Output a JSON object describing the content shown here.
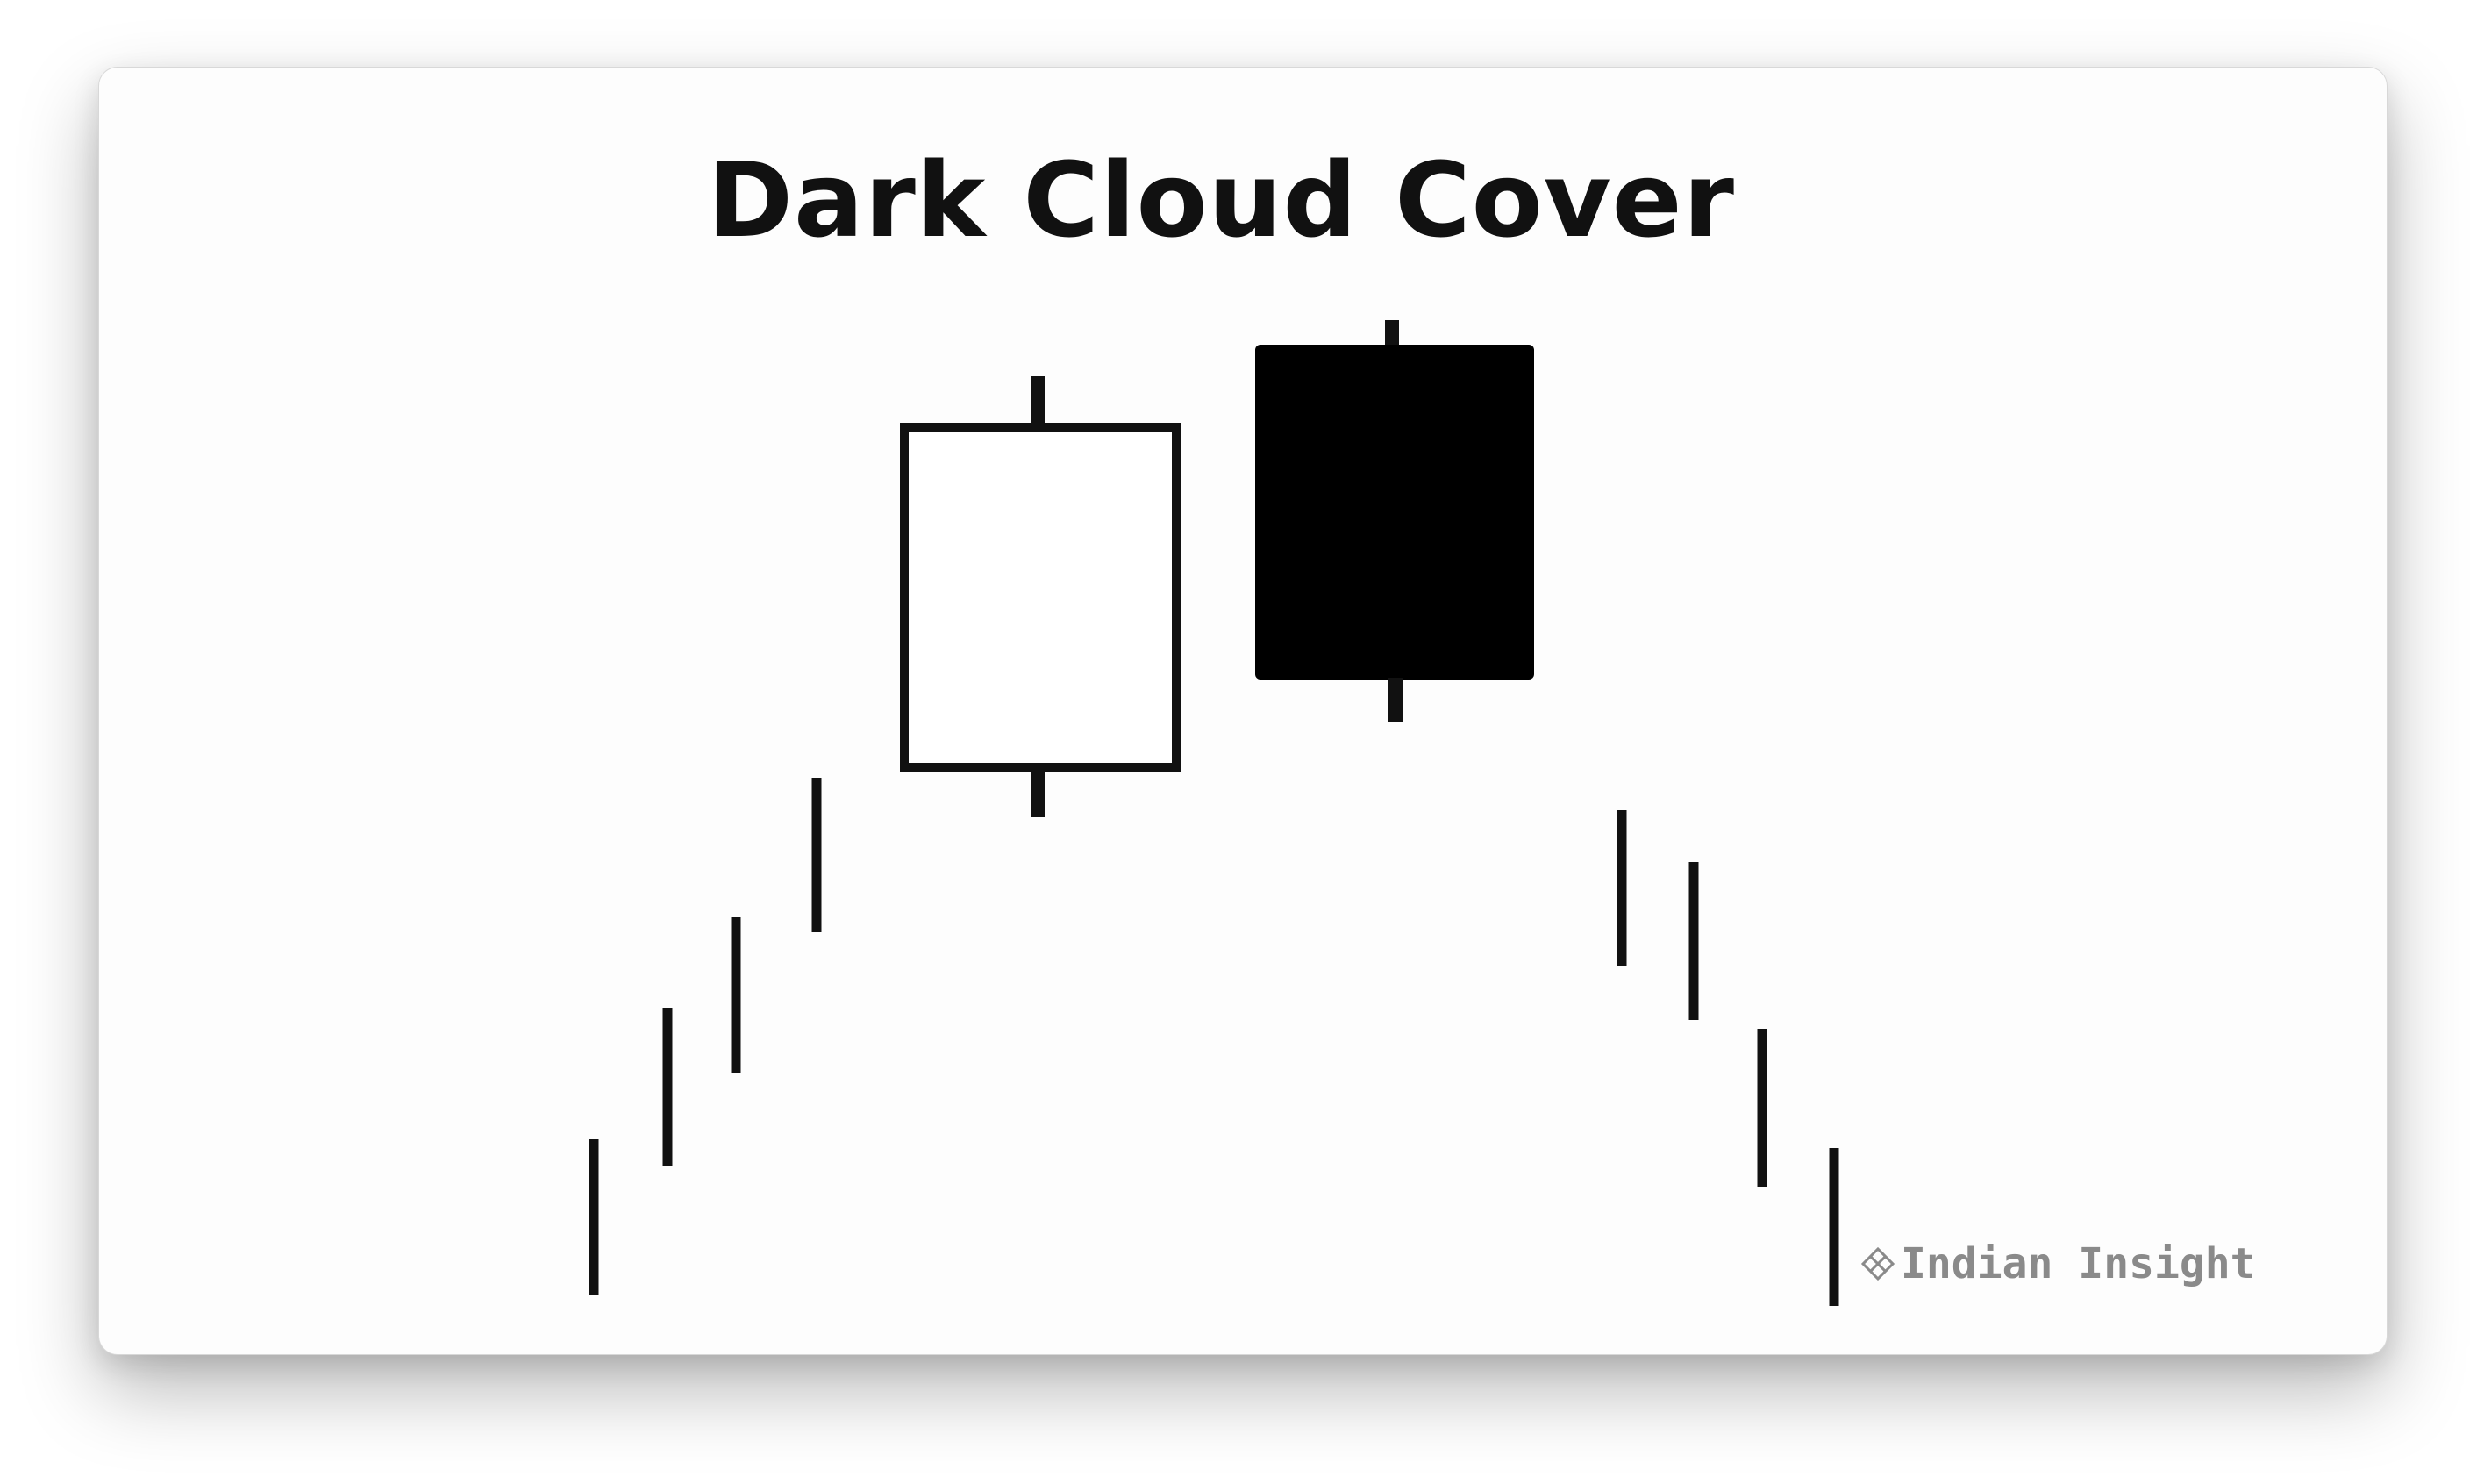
{
  "diagram": {
    "title": "Dark Cloud Cover",
    "watermark": "Indian Insight",
    "watermark_icon": "diamond-grid-icon",
    "colors": {
      "ink": "#111111",
      "bullish_body": "#ffffff",
      "bearish_body": "#000000",
      "watermark": "#8a8a8a"
    },
    "pattern": {
      "name": "Dark Cloud Cover",
      "candles": [
        "bullish",
        "bearish"
      ],
      "lead_in_trend": "up",
      "follow_through_trend": "down"
    }
  }
}
